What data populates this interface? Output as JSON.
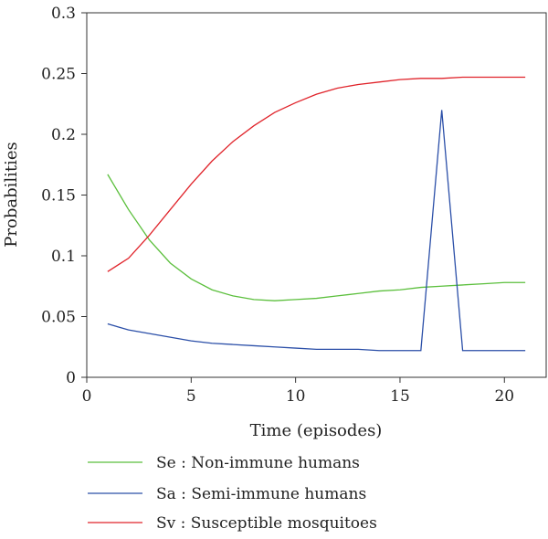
{
  "chart_data": {
    "type": "line",
    "title": "",
    "xlabel": "Time (episodes)",
    "ylabel": "Probabilities",
    "xlim": [
      0,
      22
    ],
    "ylim": [
      0,
      0.3
    ],
    "xticks": [
      0,
      5,
      10,
      15,
      20
    ],
    "xtick_labels": [
      "0",
      "5",
      "10",
      "15",
      "20"
    ],
    "yticks": [
      0,
      0.05,
      0.1,
      0.15,
      0.2,
      0.25,
      0.3
    ],
    "ytick_labels": [
      "0",
      "0.05",
      "0.1",
      "0.15",
      "0.2",
      "0.25",
      "0.3"
    ],
    "grid": false,
    "legend_position": "bottom",
    "x": [
      1,
      2,
      3,
      4,
      5,
      6,
      7,
      8,
      9,
      10,
      11,
      12,
      13,
      14,
      15,
      16,
      17,
      18,
      19,
      20,
      21
    ],
    "series": [
      {
        "name": "Se : Non-immune humans",
        "color": "#5bbf3c",
        "values": [
          0.167,
          0.138,
          0.113,
          0.094,
          0.081,
          0.072,
          0.067,
          0.064,
          0.063,
          0.064,
          0.065,
          0.067,
          0.069,
          0.071,
          0.072,
          0.074,
          0.075,
          0.076,
          0.077,
          0.078,
          0.078
        ]
      },
      {
        "name": "Sa : Semi-immune humans",
        "color": "#2b4fa8",
        "values": [
          0.044,
          0.039,
          0.036,
          0.033,
          0.03,
          0.028,
          0.027,
          0.026,
          0.025,
          0.024,
          0.023,
          0.023,
          0.023,
          0.022,
          0.022,
          0.022,
          0.22,
          0.022,
          0.022,
          0.022,
          0.022
        ]
      },
      {
        "name": "Sv : Susceptible mosquitoes",
        "color": "#e0232a",
        "values": [
          0.087,
          0.098,
          0.117,
          0.138,
          0.159,
          0.178,
          0.194,
          0.207,
          0.218,
          0.226,
          0.233,
          0.238,
          0.241,
          0.243,
          0.245,
          0.246,
          0.246,
          0.247,
          0.247,
          0.247,
          0.247
        ]
      }
    ]
  }
}
